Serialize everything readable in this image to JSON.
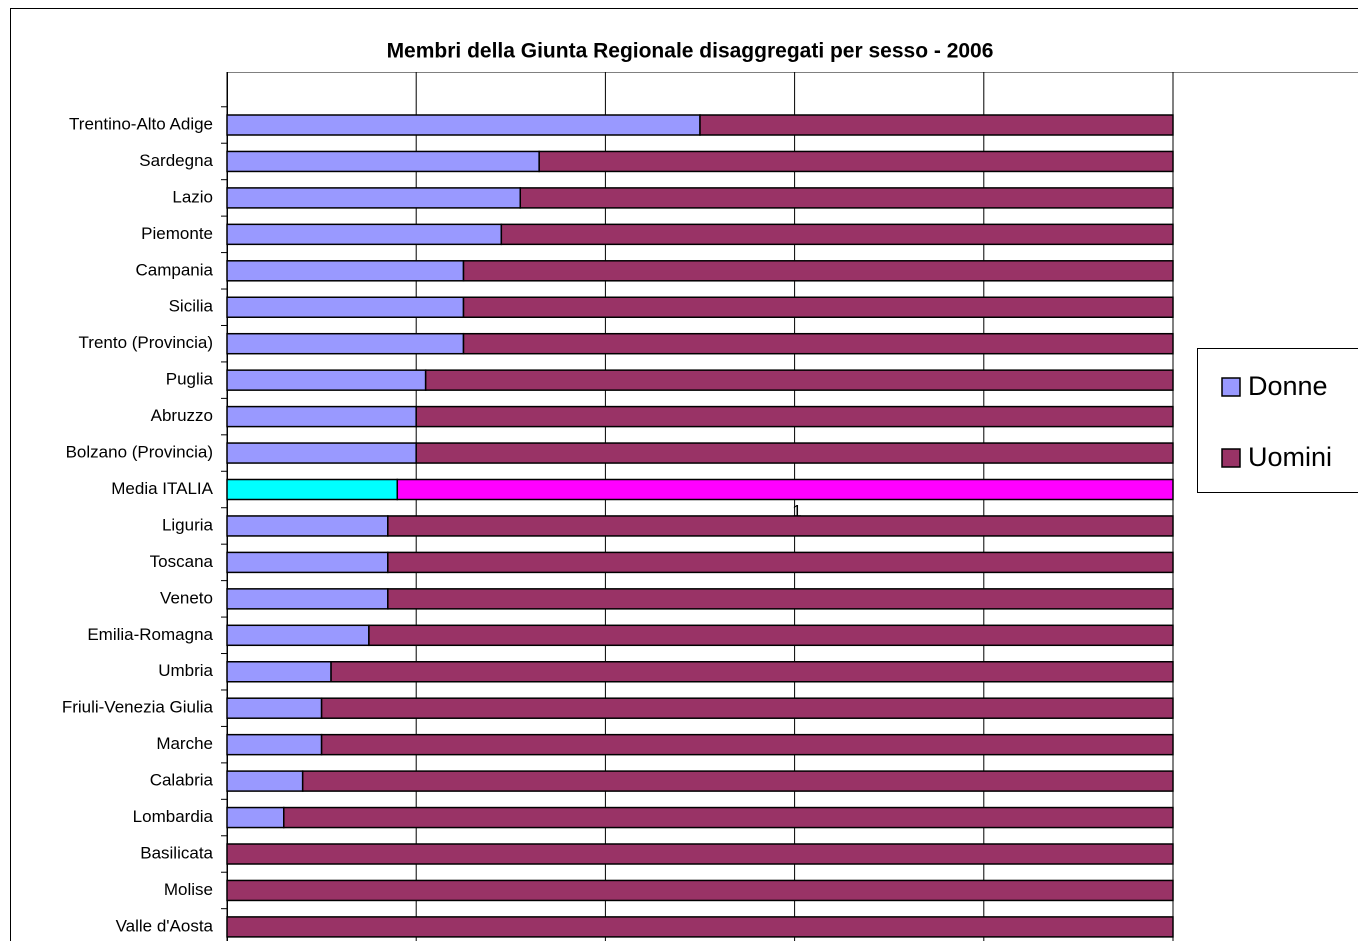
{
  "chart_data": {
    "type": "stacked_bar_horizontal_percent",
    "title": "Membri della Giunta Regionale disaggregati per sesso - 2006",
    "categories": [
      "Trentino-Alto Adige",
      "Sardegna",
      "Lazio",
      "Piemonte",
      "Campania",
      "Sicilia",
      "Trento (Provincia)",
      "Puglia",
      "Abruzzo",
      "Bolzano (Provincia)",
      "Media ITALIA",
      "Liguria",
      "Toscana",
      "Veneto",
      "Emilia-Romagna",
      "Umbria",
      "Friuli-Venezia Giulia",
      "Marche",
      "Calabria",
      "Lombardia",
      "Basilicata",
      "Molise",
      "Valle d'Aosta"
    ],
    "series": [
      {
        "name": "Donne",
        "color": "#9999ff",
        "colors": [
          "#9999ff",
          "#9999ff",
          "#9999ff",
          "#9999ff",
          "#9999ff",
          "#9999ff",
          "#9999ff",
          "#9999ff",
          "#9999ff",
          "#9999ff",
          "#00ffff",
          "#9999ff",
          "#9999ff",
          "#9999ff",
          "#9999ff",
          "#9999ff",
          "#9999ff",
          "#9999ff",
          "#9999ff",
          "#9999ff",
          "#9999ff",
          "#9999ff",
          "#9999ff"
        ],
        "values": [
          50,
          33,
          31,
          29,
          25,
          25,
          25,
          21,
          20,
          20,
          18,
          17,
          17,
          17,
          15,
          11,
          10,
          10,
          8,
          6,
          0,
          0,
          0
        ]
      },
      {
        "name": "Uomini",
        "color": "#993366",
        "colors": [
          "#993366",
          "#993366",
          "#993366",
          "#993366",
          "#993366",
          "#993366",
          "#993366",
          "#993366",
          "#993366",
          "#993366",
          "#ff00ff",
          "#993366",
          "#993366",
          "#993366",
          "#993366",
          "#993366",
          "#993366",
          "#993366",
          "#993366",
          "#993366",
          "#993366",
          "#993366",
          "#993366"
        ],
        "values": [
          50,
          67,
          69,
          71,
          75,
          75,
          75,
          79,
          80,
          80,
          82,
          83,
          83,
          83,
          85,
          89,
          90,
          90,
          92,
          94,
          100,
          100,
          100
        ]
      }
    ],
    "annotations": [
      "1"
    ],
    "xlim": [
      0,
      100
    ],
    "xticks": [
      0,
      20,
      40,
      60,
      80,
      100
    ],
    "grid": true,
    "legend": "right"
  }
}
